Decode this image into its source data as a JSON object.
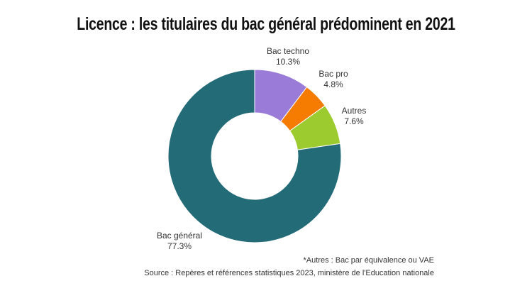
{
  "chart_data": {
    "type": "pie",
    "donut": true,
    "title": "Licence : les titulaires du bac général prédominent en 2021",
    "categories": [
      "Bac techno",
      "Bac pro",
      "Autres",
      "Bac général"
    ],
    "values": [
      10.3,
      4.8,
      7.6,
      77.3
    ],
    "value_labels": [
      "10.3%",
      "4.8%",
      "7.6%",
      "77.3%"
    ],
    "colors": [
      "#9B7BD8",
      "#F57C00",
      "#9CCB2F",
      "#246B78"
    ]
  },
  "footnote": "*Autres : Bac par équivalence ou VAE",
  "source": "Source : Repères et références statistiques 2023, ministère de l'Education nationale"
}
